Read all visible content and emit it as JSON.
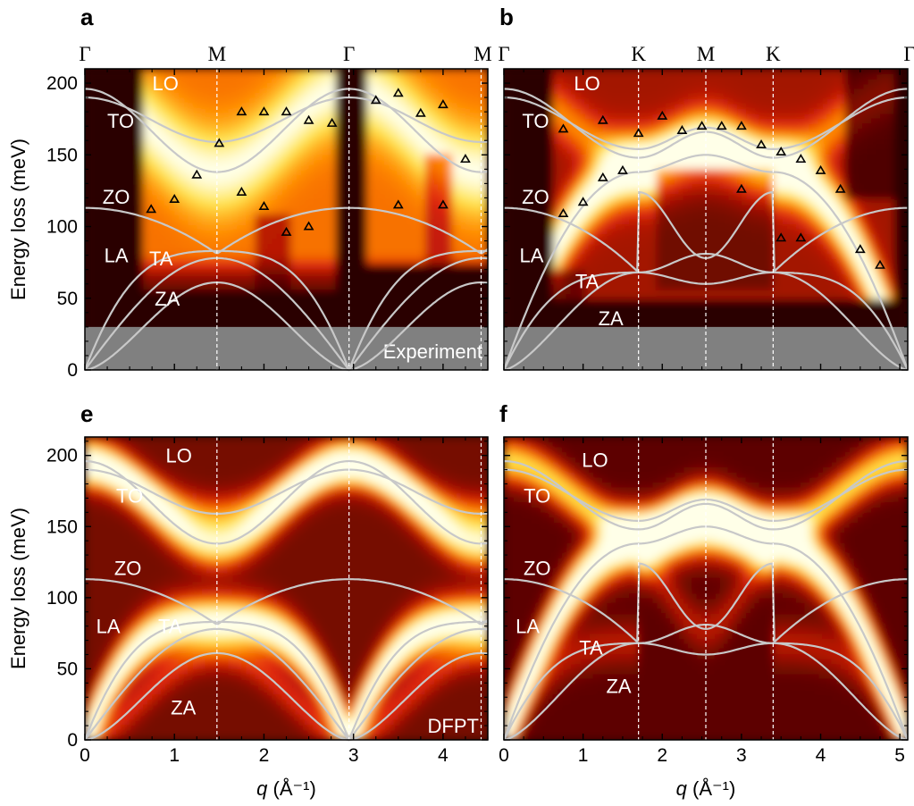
{
  "y_axis_title": "Energy loss (meV)",
  "x_axis_title": "q (Å⁻¹)",
  "x_axis_title_q": "q",
  "x_axis_title_unit": " (Å⁻¹)",
  "colormap": [
    "#2a0000",
    "#8f0a00",
    "#e0280a",
    "#ff8a00",
    "#ffe24a",
    "#ffffe8"
  ],
  "dispersion_line_color": "#c8c8c8",
  "chart_data": [
    {
      "panel": "a",
      "type": "heatmap",
      "path_labels": [
        "Γ",
        "M",
        "Γ",
        "M"
      ],
      "path_positions": [
        0,
        1.475,
        2.95,
        4.425
      ],
      "xlim": [
        0,
        4.5
      ],
      "ylim": [
        0,
        210
      ],
      "y_ticks": [
        0,
        50,
        100,
        150,
        200
      ],
      "x_tick_labels": false,
      "shaded_region": {
        "y_range": [
          0,
          30
        ],
        "label": "Experiment"
      },
      "branch_labels": [
        {
          "text": "LO",
          "x": 0.9,
          "y": 200
        },
        {
          "text": "TO",
          "x": 0.4,
          "y": 174
        },
        {
          "text": "ZO",
          "x": 0.35,
          "y": 121
        },
        {
          "text": "LA",
          "x": 0.35,
          "y": 80
        },
        {
          "text": "TA",
          "x": 0.85,
          "y": 78
        },
        {
          "text": "ZA",
          "x": 0.92,
          "y": 50
        }
      ],
      "experimental_points": [
        [
          0.74,
          112
        ],
        [
          1.0,
          119
        ],
        [
          1.25,
          136
        ],
        [
          1.5,
          158
        ],
        [
          1.75,
          180
        ],
        [
          2.0,
          180
        ],
        [
          2.25,
          180
        ],
        [
          2.5,
          174
        ],
        [
          2.76,
          172
        ],
        [
          1.75,
          124
        ],
        [
          2.0,
          114
        ],
        [
          2.25,
          96
        ],
        [
          2.5,
          100
        ],
        [
          3.25,
          188
        ],
        [
          3.5,
          193
        ],
        [
          3.75,
          179
        ],
        [
          4.0,
          185
        ],
        [
          4.25,
          147
        ],
        [
          3.5,
          115
        ],
        [
          4.0,
          115
        ]
      ]
    },
    {
      "panel": "b",
      "type": "heatmap",
      "path_labels": [
        "Γ",
        "K",
        "M",
        "K",
        "Γ"
      ],
      "path_positions": [
        0,
        1.7,
        2.55,
        3.4,
        5.1
      ],
      "xlim": [
        0,
        5.1
      ],
      "ylim": [
        0,
        210
      ],
      "y_ticks": [
        0,
        50,
        100,
        150,
        200
      ],
      "x_tick_labels": false,
      "shaded_region": {
        "y_range": [
          0,
          30
        ]
      },
      "branch_labels": [
        {
          "text": "LO",
          "x": 1.05,
          "y": 200
        },
        {
          "text": "TO",
          "x": 0.4,
          "y": 174
        },
        {
          "text": "ZO",
          "x": 0.4,
          "y": 121
        },
        {
          "text": "LA",
          "x": 0.35,
          "y": 80
        },
        {
          "text": "TA",
          "x": 1.05,
          "y": 62
        },
        {
          "text": "ZA",
          "x": 1.35,
          "y": 36
        }
      ],
      "experimental_points": [
        [
          0.75,
          109
        ],
        [
          1.0,
          117
        ],
        [
          1.25,
          134
        ],
        [
          1.5,
          139
        ],
        [
          0.75,
          168
        ],
        [
          1.25,
          174
        ],
        [
          1.7,
          165
        ],
        [
          2.0,
          177
        ],
        [
          2.25,
          167
        ],
        [
          2.5,
          170
        ],
        [
          2.75,
          170
        ],
        [
          3.0,
          170
        ],
        [
          3.25,
          157
        ],
        [
          3.5,
          152
        ],
        [
          3.75,
          147
        ],
        [
          4.0,
          139
        ],
        [
          4.25,
          126
        ],
        [
          4.5,
          84
        ],
        [
          4.75,
          73
        ],
        [
          3.0,
          126
        ],
        [
          3.5,
          92
        ],
        [
          3.75,
          92
        ]
      ]
    },
    {
      "panel": "e",
      "type": "heatmap",
      "path_labels": [],
      "path_positions": [
        0,
        1.475,
        2.95,
        4.425
      ],
      "xlim": [
        0,
        4.5
      ],
      "ylim": [
        0,
        213
      ],
      "x_ticks": [
        0,
        1,
        2,
        3,
        4
      ],
      "y_ticks": [
        0,
        50,
        100,
        150,
        200
      ],
      "x_tick_labels": true,
      "corner_note": "DFPT",
      "branch_labels": [
        {
          "text": "LO",
          "x": 1.05,
          "y": 200
        },
        {
          "text": "TO",
          "x": 0.5,
          "y": 172
        },
        {
          "text": "ZO",
          "x": 0.48,
          "y": 121
        },
        {
          "text": "LA",
          "x": 0.26,
          "y": 80
        },
        {
          "text": "TA",
          "x": 0.95,
          "y": 80
        },
        {
          "text": "ZA",
          "x": 1.1,
          "y": 23
        }
      ]
    },
    {
      "panel": "f",
      "type": "heatmap",
      "path_labels": [],
      "path_positions": [
        0,
        1.7,
        2.55,
        3.4,
        5.1
      ],
      "xlim": [
        0,
        5.1
      ],
      "ylim": [
        0,
        213
      ],
      "x_ticks": [
        0,
        1,
        2,
        3,
        4,
        5
      ],
      "y_ticks": [
        0,
        50,
        100,
        150,
        200
      ],
      "x_tick_labels": true,
      "branch_labels": [
        {
          "text": "LO",
          "x": 1.15,
          "y": 197
        },
        {
          "text": "TO",
          "x": 0.42,
          "y": 172
        },
        {
          "text": "ZO",
          "x": 0.42,
          "y": 121
        },
        {
          "text": "LA",
          "x": 0.3,
          "y": 80
        },
        {
          "text": "TA",
          "x": 1.1,
          "y": 65
        },
        {
          "text": "ZA",
          "x": 1.45,
          "y": 38
        }
      ]
    }
  ]
}
